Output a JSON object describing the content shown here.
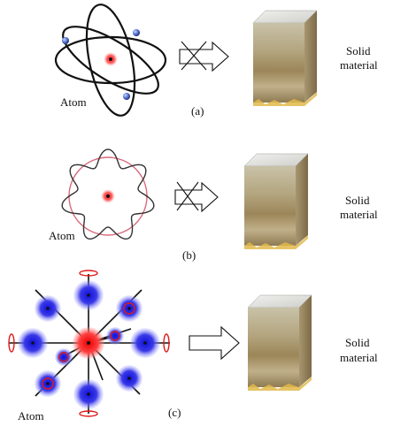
{
  "panels": [
    {
      "id": "a",
      "caption": "(a)",
      "atom_label": "Atom",
      "solid_label_line1": "Solid",
      "solid_label_line2": "material",
      "arrow": "crossed"
    },
    {
      "id": "b",
      "caption": "(b)",
      "atom_label": "Atom",
      "solid_label_line1": "Solid",
      "solid_label_line2": "material",
      "arrow": "crossed"
    },
    {
      "id": "c",
      "caption": "(c)",
      "atom_label": "Atom",
      "solid_label_line1": "Solid",
      "solid_label_line2": "material",
      "arrow": "plain"
    }
  ],
  "colors": {
    "nucleus": "#e02020",
    "electron": "#3b5bd1",
    "blob": "#2a2ae6",
    "orbit": "#111111",
    "standing_wave": "#d96a7a",
    "cube_front": "#b59a6a",
    "cube_top": "#e4e4e2"
  }
}
